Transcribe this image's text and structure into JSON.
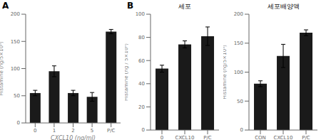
{
  "chart_data": [
    {
      "type": "bar",
      "title": "A",
      "xlabel": "CXCL10 (ng/ml)",
      "ylabel": "Histamine (ng/5×10⁵)",
      "categories": [
        "0",
        "1",
        "2",
        "5",
        "P/C"
      ],
      "values": [
        55,
        95,
        55,
        48,
        168
      ],
      "errors": [
        5,
        10,
        5,
        8,
        4
      ],
      "color": "#1a1a1a",
      "ylim": [
        0,
        200
      ],
      "yticks": [
        0,
        50,
        100,
        150,
        200
      ]
    },
    {
      "type": "bar",
      "title": "B",
      "subtitle": "세포",
      "ylabel": "Histamine (ng / 5×10⁵)",
      "categories": [
        "0",
        "CXCL10",
        "P/C"
      ],
      "values": [
        53,
        74,
        81
      ],
      "errors": [
        3,
        3,
        8
      ],
      "color": "#1a1a1a",
      "ylim": [
        0,
        100
      ],
      "yticks": [
        0,
        20,
        40,
        60,
        80,
        100
      ]
    },
    {
      "type": "bar",
      "subtitle": "세포배양액",
      "ylabel": "Histamine (ng/5×10⁵)",
      "categories": [
        "CON",
        "CXCL10",
        "P/C"
      ],
      "values": [
        80,
        128,
        168
      ],
      "errors": [
        5,
        20,
        5
      ],
      "color": "#1a1a1a",
      "ylim": [
        0,
        200
      ],
      "yticks": [
        0,
        50,
        100,
        150,
        200
      ]
    }
  ]
}
